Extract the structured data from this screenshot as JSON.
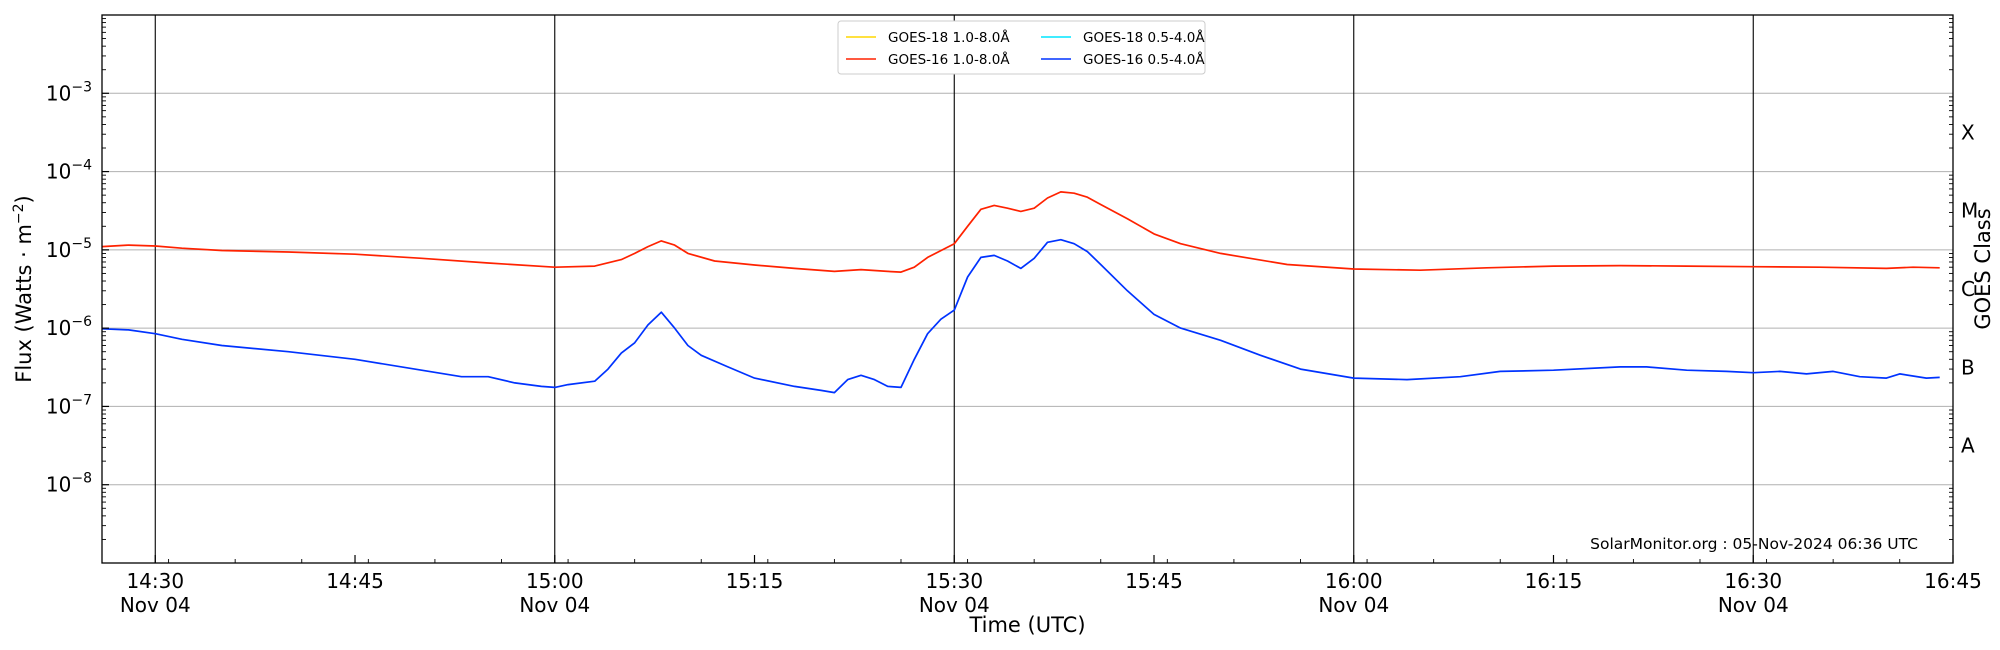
{
  "chart_data": {
    "type": "line",
    "x_axis": {
      "label": "Time (UTC)",
      "range": [
        "14:26",
        "16:45"
      ],
      "ticks": [
        {
          "t": "14:30",
          "line1": "14:30",
          "line2": "Nov 04"
        },
        {
          "t": "14:45",
          "line1": "14:45",
          "line2": ""
        },
        {
          "t": "15:00",
          "line1": "15:00",
          "line2": "Nov 04"
        },
        {
          "t": "15:15",
          "line1": "15:15",
          "line2": ""
        },
        {
          "t": "15:30",
          "line1": "15:30",
          "line2": "Nov 04"
        },
        {
          "t": "15:45",
          "line1": "15:45",
          "line2": ""
        },
        {
          "t": "16:00",
          "line1": "16:00",
          "line2": "Nov 04"
        },
        {
          "t": "16:15",
          "line1": "16:15",
          "line2": ""
        },
        {
          "t": "16:30",
          "line1": "16:30",
          "line2": "Nov 04"
        },
        {
          "t": "16:45",
          "line1": "16:45",
          "line2": ""
        }
      ],
      "vertical_markers": [
        "14:30",
        "15:00",
        "15:30",
        "16:00",
        "16:30"
      ]
    },
    "y_axis": {
      "label_main": "Flux (Watts · m",
      "label_sup": "−2",
      "label_end": ")",
      "scale": "log",
      "range": [
        1e-09,
        0.01
      ],
      "ticks": [
        {
          "value": 0.001,
          "base": "10",
          "exp": "−3"
        },
        {
          "value": 0.0001,
          "base": "10",
          "exp": "−4"
        },
        {
          "value": 1e-05,
          "base": "10",
          "exp": "−5"
        },
        {
          "value": 1e-06,
          "base": "10",
          "exp": "−6"
        },
        {
          "value": 1e-07,
          "base": "10",
          "exp": "−7"
        },
        {
          "value": 1e-08,
          "base": "10",
          "exp": "−8"
        }
      ],
      "grid": true
    },
    "right_axis": {
      "label": "GOES Class",
      "classes": [
        {
          "name": "X",
          "value": 0.000316
        },
        {
          "name": "M",
          "value": 3.16e-05
        },
        {
          "name": "C",
          "value": 3.16e-06
        },
        {
          "name": "B",
          "value": 3.16e-07
        },
        {
          "name": "A",
          "value": 3.16e-08
        }
      ]
    },
    "legend": {
      "placement": "top-center",
      "entries": [
        {
          "name": "GOES-18 1.0-8.0Å",
          "color": "#ffd700"
        },
        {
          "name": "GOES-16 1.0-8.0Å",
          "color": "#ff2200"
        },
        {
          "name": "GOES-18 0.5-4.0Å",
          "color": "#00e5ff"
        },
        {
          "name": "GOES-16 0.5-4.0Å",
          "color": "#0033ff"
        }
      ]
    },
    "series": [
      {
        "name": "GOES-16 1.0-8.0Å",
        "color": "#ff2200",
        "points": [
          [
            "14:26",
            1.1e-05
          ],
          [
            "14:28",
            1.15e-05
          ],
          [
            "14:30",
            1.12e-05
          ],
          [
            "14:32",
            1.05e-05
          ],
          [
            "14:35",
            9.8e-06
          ],
          [
            "14:40",
            9.4e-06
          ],
          [
            "14:45",
            8.8e-06
          ],
          [
            "14:50",
            7.8e-06
          ],
          [
            "14:55",
            6.8e-06
          ],
          [
            "15:00",
            6e-06
          ],
          [
            "15:03",
            6.2e-06
          ],
          [
            "15:05",
            7.5e-06
          ],
          [
            "15:06",
            9e-06
          ],
          [
            "15:07",
            1.1e-05
          ],
          [
            "15:08",
            1.3e-05
          ],
          [
            "15:09",
            1.15e-05
          ],
          [
            "15:10",
            9e-06
          ],
          [
            "15:12",
            7.2e-06
          ],
          [
            "15:15",
            6.4e-06
          ],
          [
            "15:18",
            5.8e-06
          ],
          [
            "15:21",
            5.3e-06
          ],
          [
            "15:23",
            5.6e-06
          ],
          [
            "15:25",
            5.3e-06
          ],
          [
            "15:26",
            5.2e-06
          ],
          [
            "15:27",
            6e-06
          ],
          [
            "15:28",
            8e-06
          ],
          [
            "15:30",
            1.2e-05
          ],
          [
            "15:31",
            2e-05
          ],
          [
            "15:32",
            3.3e-05
          ],
          [
            "15:33",
            3.7e-05
          ],
          [
            "15:34",
            3.4e-05
          ],
          [
            "15:35",
            3.1e-05
          ],
          [
            "15:36",
            3.4e-05
          ],
          [
            "15:37",
            4.6e-05
          ],
          [
            "15:38",
            5.5e-05
          ],
          [
            "15:39",
            5.3e-05
          ],
          [
            "15:40",
            4.7e-05
          ],
          [
            "15:41",
            3.8e-05
          ],
          [
            "15:43",
            2.5e-05
          ],
          [
            "15:45",
            1.6e-05
          ],
          [
            "15:47",
            1.2e-05
          ],
          [
            "15:50",
            9e-06
          ],
          [
            "15:55",
            6.5e-06
          ],
          [
            "16:00",
            5.7e-06
          ],
          [
            "16:05",
            5.5e-06
          ],
          [
            "16:10",
            5.9e-06
          ],
          [
            "16:15",
            6.2e-06
          ],
          [
            "16:20",
            6.3e-06
          ],
          [
            "16:25",
            6.2e-06
          ],
          [
            "16:30",
            6.1e-06
          ],
          [
            "16:35",
            6e-06
          ],
          [
            "16:40",
            5.8e-06
          ],
          [
            "16:42",
            6e-06
          ],
          [
            "16:44",
            5.9e-06
          ]
        ]
      },
      {
        "name": "GOES-16 0.5-4.0Å",
        "color": "#0033ff",
        "points": [
          [
            "14:26",
            9.8e-07
          ],
          [
            "14:28",
            9.5e-07
          ],
          [
            "14:30",
            8.5e-07
          ],
          [
            "14:32",
            7.2e-07
          ],
          [
            "14:35",
            6e-07
          ],
          [
            "14:40",
            5e-07
          ],
          [
            "14:45",
            4e-07
          ],
          [
            "14:50",
            2.9e-07
          ],
          [
            "14:53",
            2.4e-07
          ],
          [
            "14:55",
            2.4e-07
          ],
          [
            "14:57",
            2e-07
          ],
          [
            "14:59",
            1.8e-07
          ],
          [
            "15:00",
            1.75e-07
          ],
          [
            "15:01",
            1.9e-07
          ],
          [
            "15:03",
            2.1e-07
          ],
          [
            "15:04",
            3e-07
          ],
          [
            "15:05",
            4.8e-07
          ],
          [
            "15:06",
            6.5e-07
          ],
          [
            "15:07",
            1.1e-06
          ],
          [
            "15:08",
            1.6e-06
          ],
          [
            "15:09",
            1e-06
          ],
          [
            "15:10",
            6e-07
          ],
          [
            "15:11",
            4.5e-07
          ],
          [
            "15:13",
            3.2e-07
          ],
          [
            "15:15",
            2.3e-07
          ],
          [
            "15:18",
            1.8e-07
          ],
          [
            "15:20",
            1.6e-07
          ],
          [
            "15:21",
            1.5e-07
          ],
          [
            "15:22",
            2.2e-07
          ],
          [
            "15:23",
            2.5e-07
          ],
          [
            "15:24",
            2.2e-07
          ],
          [
            "15:25",
            1.8e-07
          ],
          [
            "15:26",
            1.75e-07
          ],
          [
            "15:27",
            4e-07
          ],
          [
            "15:28",
            8.5e-07
          ],
          [
            "15:29",
            1.3e-06
          ],
          [
            "15:30",
            1.7e-06
          ],
          [
            "15:31",
            4.5e-06
          ],
          [
            "15:32",
            8e-06
          ],
          [
            "15:33",
            8.5e-06
          ],
          [
            "15:34",
            7.2e-06
          ],
          [
            "15:35",
            5.8e-06
          ],
          [
            "15:36",
            7.8e-06
          ],
          [
            "15:37",
            1.25e-05
          ],
          [
            "15:38",
            1.35e-05
          ],
          [
            "15:39",
            1.2e-05
          ],
          [
            "15:40",
            9.5e-06
          ],
          [
            "15:41",
            6.5e-06
          ],
          [
            "15:43",
            3e-06
          ],
          [
            "15:45",
            1.5e-06
          ],
          [
            "15:47",
            1e-06
          ],
          [
            "15:50",
            7e-07
          ],
          [
            "15:53",
            4.5e-07
          ],
          [
            "15:56",
            3e-07
          ],
          [
            "16:00",
            2.3e-07
          ],
          [
            "16:04",
            2.2e-07
          ],
          [
            "16:08",
            2.4e-07
          ],
          [
            "16:11",
            2.8e-07
          ],
          [
            "16:15",
            2.9e-07
          ],
          [
            "16:20",
            3.2e-07
          ],
          [
            "16:22",
            3.2e-07
          ],
          [
            "16:25",
            2.9e-07
          ],
          [
            "16:28",
            2.8e-07
          ],
          [
            "16:30",
            2.7e-07
          ],
          [
            "16:32",
            2.8e-07
          ],
          [
            "16:34",
            2.6e-07
          ],
          [
            "16:36",
            2.8e-07
          ],
          [
            "16:38",
            2.4e-07
          ],
          [
            "16:40",
            2.3e-07
          ],
          [
            "16:41",
            2.6e-07
          ],
          [
            "16:43",
            2.3e-07
          ],
          [
            "16:44",
            2.35e-07
          ]
        ]
      }
    ],
    "annotation": "SolarMonitor.org : 05-Nov-2024 06:36 UTC"
  }
}
